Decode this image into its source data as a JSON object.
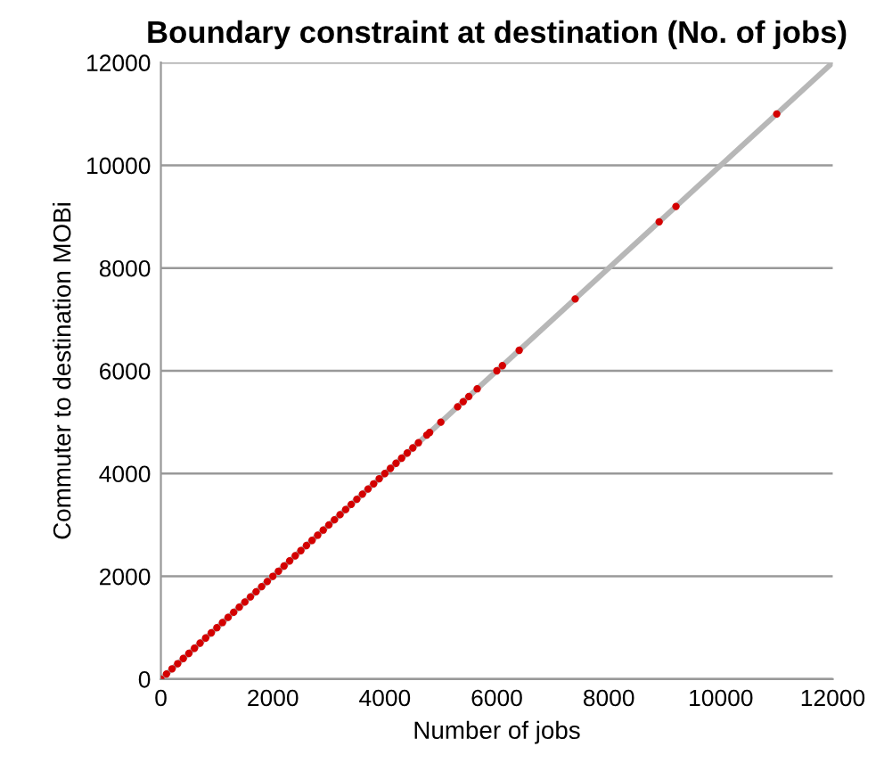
{
  "chart_data": {
    "type": "scatter",
    "title": "Boundary constraint at destination (No. of jobs)",
    "xlabel": "Number of jobs",
    "ylabel": "Commuter to destination MOBi",
    "xlim": [
      0,
      12000
    ],
    "ylim": [
      0,
      12000
    ],
    "xticks": [
      0,
      2000,
      4000,
      6000,
      8000,
      10000,
      12000
    ],
    "yticks": [
      0,
      2000,
      4000,
      6000,
      8000,
      10000,
      12000
    ],
    "grid": "y",
    "marker": "circle",
    "series": [
      {
        "type": "line",
        "color": "#b7b7b7",
        "x": [
          0,
          12000
        ],
        "values": [
          0,
          12000
        ],
        "marker": "none",
        "line_style": "solid"
      },
      {
        "color": "#d40000",
        "x": [
          0,
          100,
          200,
          300,
          400,
          500,
          600,
          700,
          800,
          900,
          1000,
          1100,
          1200,
          1300,
          1400,
          1500,
          1600,
          1700,
          1800,
          1900,
          2000,
          2100,
          2200,
          2300,
          2400,
          2500,
          2600,
          2700,
          2800,
          2900,
          3000,
          3100,
          3200,
          3300,
          3400,
          3500,
          3600,
          3700,
          3800,
          3900,
          4000,
          4100,
          4200,
          4300,
          4400,
          4500,
          4600,
          4750,
          4800,
          5000,
          5300,
          5400,
          5500,
          5650,
          6000,
          6100,
          6400,
          7400,
          8900,
          9200,
          11000
        ],
        "values": [
          0,
          100,
          200,
          300,
          400,
          500,
          600,
          700,
          800,
          900,
          1000,
          1100,
          1200,
          1300,
          1400,
          1500,
          1600,
          1700,
          1800,
          1900,
          2000,
          2100,
          2200,
          2300,
          2400,
          2500,
          2600,
          2700,
          2800,
          2900,
          3000,
          3100,
          3200,
          3300,
          3400,
          3500,
          3600,
          3700,
          3800,
          3900,
          4000,
          4100,
          4200,
          4300,
          4400,
          4500,
          4600,
          4750,
          4800,
          5000,
          5300,
          5400,
          5500,
          5650,
          6000,
          6100,
          6400,
          7400,
          8900,
          9200,
          11000
        ]
      }
    ]
  }
}
